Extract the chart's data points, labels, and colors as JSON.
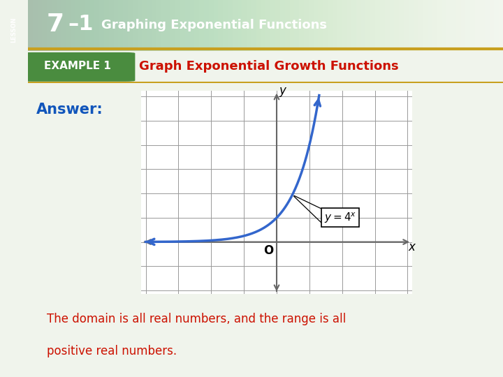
{
  "title_bar_text": "7–1",
  "title_bar_sub": "Graphing Exponential Functions",
  "example_label": "EXAMPLE 1",
  "example_title": "Graph Exponential Growth Functions",
  "answer_label": "Answer:",
  "bottom_text_line1": "The domain is all real numbers, and the range is all",
  "bottom_text_line2": "positive real numbers.",
  "bg_main": "#f0f4ec",
  "bg_left_strip": "#4a8c3f",
  "title_bar_color_dark": "#2e6b28",
  "title_bar_color_light": "#5aaa40",
  "example_badge_color": "#4a8c3f",
  "example_title_color": "#cc1100",
  "answer_color": "#1155bb",
  "bottom_text_color": "#cc1100",
  "curve_color": "#3366cc",
  "grid_color": "#999999",
  "axis_color": "#666666",
  "plot_bg": "#ffffff",
  "border_color": "#c8a020",
  "x_axis_range": [
    -4,
    4
  ],
  "y_axis_range": [
    -2,
    6
  ]
}
